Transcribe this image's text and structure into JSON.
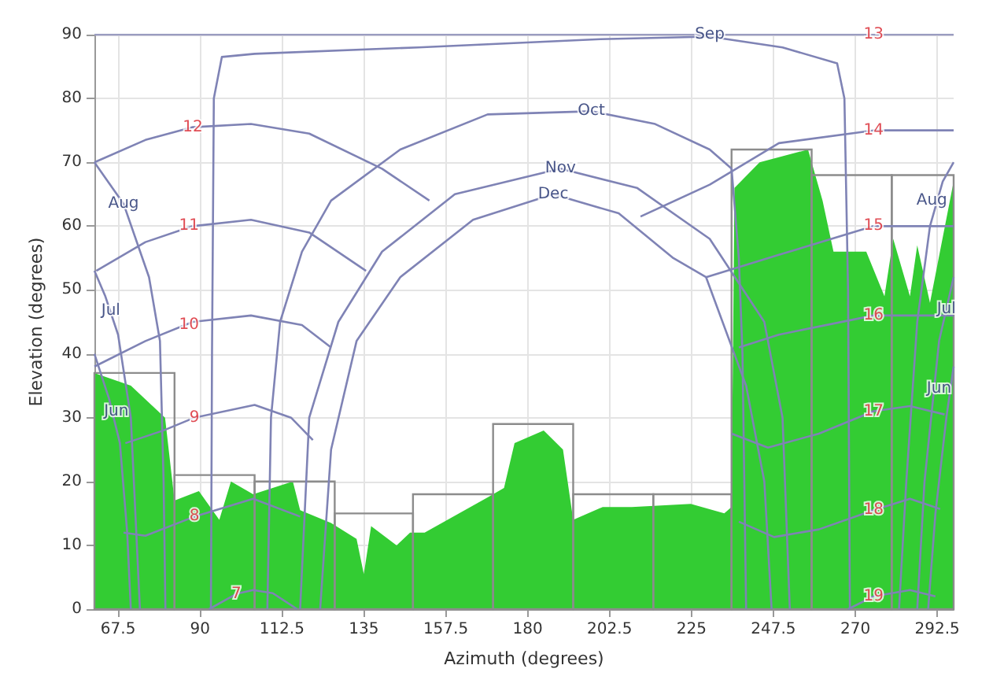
{
  "chart_data": {
    "type": "line",
    "xlabel": "Azimuth (degrees)",
    "ylabel": "Elevation (degrees)",
    "xlim": [
      61,
      297
    ],
    "xticks": [
      67.5,
      90,
      112.5,
      135,
      157.5,
      180,
      202.5,
      225,
      247.5,
      270,
      292.5
    ],
    "ylim": [
      0,
      90
    ],
    "yticks": [
      0,
      10,
      20,
      30,
      40,
      50,
      60,
      70,
      80,
      90
    ],
    "grid": true,
    "marker": "none",
    "series": [
      {
        "type": "area",
        "color": "#33cc33",
        "x": [
          61,
          71,
          80.4,
          83,
          89.7,
          95.3,
          98.5,
          104.6,
          115.5,
          117.5,
          126,
          133,
          135,
          137,
          144,
          147.7,
          151.7,
          169,
          173.5,
          176.4,
          184.4,
          189.7,
          192.5,
          200.6,
          208.6,
          224.8,
          234,
          236,
          236.8,
          243.7,
          257,
          261,
          264,
          273,
          278,
          280.4,
          285,
          287,
          290.5,
          297
        ],
        "values": [
          37,
          35,
          30,
          17,
          18.5,
          14,
          20,
          18,
          20,
          15.5,
          13.5,
          11,
          5.5,
          13,
          10,
          12,
          12,
          17.5,
          19,
          26,
          28,
          25,
          14,
          16,
          16,
          16.5,
          15,
          16,
          66,
          70,
          72,
          64,
          56,
          56,
          49,
          58,
          49,
          57,
          48,
          67
        ]
      },
      {
        "type": "histogram",
        "color": "#8c8c8c",
        "bins": [
          61,
          83,
          105,
          127,
          148.5,
          170.5,
          192.5,
          214.5,
          236,
          258,
          280,
          297
        ],
        "values": [
          37,
          21,
          20,
          15,
          18,
          29,
          18,
          18,
          72,
          68,
          68
        ]
      },
      {
        "color": "#7f83b5",
        "x": [
          61,
          75,
          88,
          104,
          120,
          140,
          153
        ],
        "values": [
          70,
          73.5,
          75.5,
          76,
          74.5,
          69,
          64
        ]
      },
      {
        "color": "#7f83b5",
        "x": [
          61.5,
          75,
          88,
          104,
          120,
          135.6
        ],
        "values": [
          53,
          57.5,
          60,
          61,
          59,
          53
        ]
      },
      {
        "color": "#7f83b5",
        "x": [
          61,
          75,
          88,
          104,
          118,
          126
        ],
        "values": [
          38,
          42,
          45,
          46,
          44.5,
          41
        ]
      },
      {
        "color": "#7f83b5",
        "x": [
          69.5,
          80,
          88.5,
          105,
          115,
          121
        ],
        "values": [
          26,
          28,
          30,
          32,
          30,
          26.5
        ]
      },
      {
        "color": "#7f83b5",
        "x": [
          69,
          75,
          88.5,
          104.6,
          117.5
        ],
        "values": [
          12,
          11.5,
          14.5,
          17.3,
          14.5
        ]
      },
      {
        "color": "#7f83b5",
        "x": [
          92.5,
          100,
          104.6,
          110,
          116.7
        ],
        "values": [
          0,
          2.4,
          3,
          2.5,
          0
        ]
      },
      {
        "color": "#9a9cc0",
        "x": [
          61,
          297
        ],
        "values": [
          90,
          90
        ]
      },
      {
        "color": "#7f83b5",
        "x": [
          211,
          230,
          249,
          275,
          297
        ],
        "values": [
          61.5,
          66.5,
          73,
          75,
          75
        ]
      },
      {
        "color": "#7f83b5",
        "x": [
          229,
          249,
          275,
          297
        ],
        "values": [
          52,
          55.5,
          60,
          60
        ]
      },
      {
        "color": "#7f83b5",
        "x": [
          238,
          249,
          275,
          297
        ],
        "values": [
          41,
          43,
          46,
          46
        ]
      },
      {
        "color": "#7f83b5",
        "x": [
          236,
          246,
          260,
          275,
          285,
          294.5
        ],
        "values": [
          27.5,
          25.3,
          27.5,
          31,
          31.8,
          30.5
        ]
      },
      {
        "color": "#7f83b5",
        "x": [
          238,
          247.7,
          260,
          275,
          285,
          293.3
        ],
        "values": [
          13.7,
          11.3,
          12.5,
          15.5,
          17.3,
          15.7
        ]
      },
      {
        "color": "#7f83b5",
        "x": [
          268,
          275,
          285,
          292
        ],
        "values": [
          0,
          2,
          3,
          2
        ]
      },
      {
        "color": "#7f83b5",
        "x": [
          61,
          69,
          76,
          79,
          80,
          80.5
        ],
        "values": [
          70,
          63.5,
          52,
          42,
          20,
          0
        ]
      },
      {
        "color": "#7f83b5",
        "x": [
          61,
          64,
          67.5,
          71,
          73.5
        ],
        "values": [
          53,
          49,
          43,
          30,
          0
        ]
      },
      {
        "color": "#7f83b5",
        "x": [
          61,
          65,
          68,
          70,
          71
        ],
        "values": [
          40,
          33,
          26,
          12,
          0
        ]
      },
      {
        "color": "#7f83b5",
        "x": [
          93,
          93.3,
          93.8,
          96,
          105,
          150,
          200,
          230,
          250,
          265,
          267,
          268,
          268.5
        ],
        "values": [
          0,
          40,
          80,
          86.5,
          87,
          88,
          89.3,
          89.7,
          88,
          85.5,
          80,
          50,
          0
        ]
      },
      {
        "color": "#7f83b5",
        "x": [
          108.5,
          109.5,
          112,
          118,
          126,
          145,
          169,
          197.5,
          215,
          230,
          236,
          238,
          239,
          240
        ],
        "values": [
          0,
          30,
          45,
          56,
          64,
          72,
          77.5,
          78,
          76,
          72,
          69,
          55,
          40,
          0
        ]
      },
      {
        "color": "#7f83b5",
        "x": [
          117.5,
          120,
          128,
          140,
          160,
          189,
          210,
          230,
          245,
          250,
          252
        ],
        "values": [
          0,
          30,
          45,
          56,
          65,
          69,
          66,
          58,
          45,
          30,
          0
        ]
      },
      {
        "color": "#7f83b5",
        "x": [
          123,
          126,
          133,
          145,
          165,
          187,
          205,
          220,
          229,
          240,
          245,
          247
        ],
        "values": [
          0,
          25,
          42,
          52,
          61,
          65,
          62,
          55,
          52,
          35,
          20,
          0
        ]
      },
      {
        "color": "#7f83b5",
        "x": [
          282,
          284,
          287,
          290.5,
          294,
          297
        ],
        "values": [
          0,
          20,
          45,
          60,
          67,
          70
        ]
      },
      {
        "color": "#7f83b5",
        "x": [
          287,
          289,
          293,
          295,
          297
        ],
        "values": [
          0,
          20,
          42,
          47,
          52
        ]
      },
      {
        "color": "#7f83b5",
        "x": [
          290,
          292,
          295,
          297
        ],
        "values": [
          0,
          15,
          30,
          38
        ]
      }
    ],
    "annotations": [
      {
        "text": "Aug",
        "x": 69,
        "y": 63.5
      },
      {
        "text": "Jul",
        "x": 65.5,
        "y": 46.7
      },
      {
        "text": "Jun",
        "x": 67,
        "y": 31
      },
      {
        "text": "Sep",
        "x": 230,
        "y": 90
      },
      {
        "text": "Oct",
        "x": 197.5,
        "y": 78
      },
      {
        "text": "Nov",
        "x": 189,
        "y": 69
      },
      {
        "text": "Dec",
        "x": 187,
        "y": 65
      },
      {
        "text": "Aug",
        "x": 291,
        "y": 64
      },
      {
        "text": "Jul",
        "x": 295,
        "y": 47
      },
      {
        "text": "Jun",
        "x": 293,
        "y": 34.5
      },
      {
        "text": "12",
        "x": 88,
        "y": 75.5
      },
      {
        "text": "11",
        "x": 87,
        "y": 60
      },
      {
        "text": "10",
        "x": 87,
        "y": 44.5
      },
      {
        "text": "9",
        "x": 88.5,
        "y": 30
      },
      {
        "text": "8",
        "x": 88.5,
        "y": 14.5
      },
      {
        "text": "7",
        "x": 100,
        "y": 2.4
      },
      {
        "text": "13",
        "x": 275,
        "y": 90
      },
      {
        "text": "14",
        "x": 275,
        "y": 75
      },
      {
        "text": "15",
        "x": 275,
        "y": 60
      },
      {
        "text": "16",
        "x": 275,
        "y": 46
      },
      {
        "text": "17",
        "x": 275,
        "y": 31
      },
      {
        "text": "18",
        "x": 275,
        "y": 15.5
      },
      {
        "text": "19",
        "x": 275,
        "y": 2
      }
    ]
  }
}
